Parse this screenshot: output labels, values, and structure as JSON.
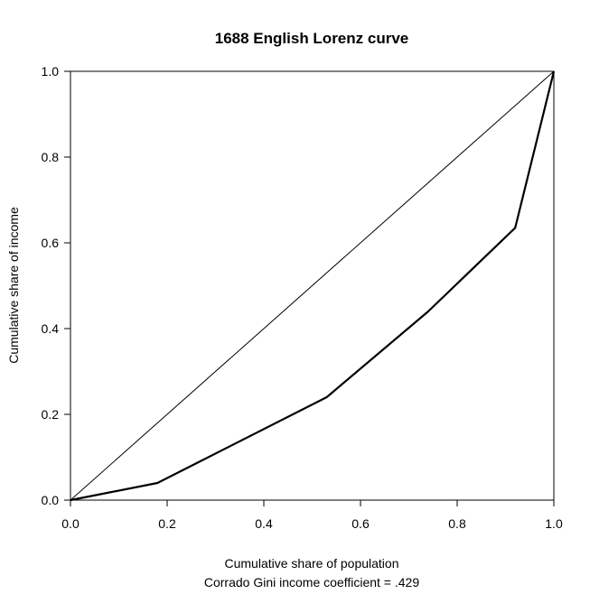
{
  "chart_data": {
    "type": "line",
    "title": "1688 English Lorenz curve",
    "xlabel": "Cumulative share of population",
    "subtitle": "Corrado Gini income coefficient = .429",
    "ylabel": "Cumulative share of income",
    "xlim": [
      0,
      1
    ],
    "ylim": [
      0,
      1
    ],
    "x_ticks": [
      0,
      0.2,
      0.4,
      0.6,
      0.8,
      1
    ],
    "x_tick_labels": [
      "0.0",
      "0.2",
      "0.4",
      "0.6",
      "0.8",
      "1.0"
    ],
    "y_ticks": [
      0,
      0.2,
      0.4,
      0.6,
      0.8,
      1
    ],
    "y_tick_labels": [
      "0.0",
      "0.2",
      "0.4",
      "0.6",
      "0.8",
      "1.0"
    ],
    "grid": false,
    "legend": "none",
    "series": [
      {
        "role": "lorenz-curve",
        "x": [
          0,
          0.18,
          0.53,
          0.74,
          0.92,
          1.0
        ],
        "y": [
          0,
          0.04,
          0.24,
          0.44,
          0.635,
          1.0
        ]
      },
      {
        "role": "equality-line",
        "x": [
          0,
          1
        ],
        "y": [
          0,
          1
        ]
      }
    ],
    "colors": {
      "lorenz": "#000000",
      "equality": "#000000",
      "axes": "#000000"
    }
  }
}
